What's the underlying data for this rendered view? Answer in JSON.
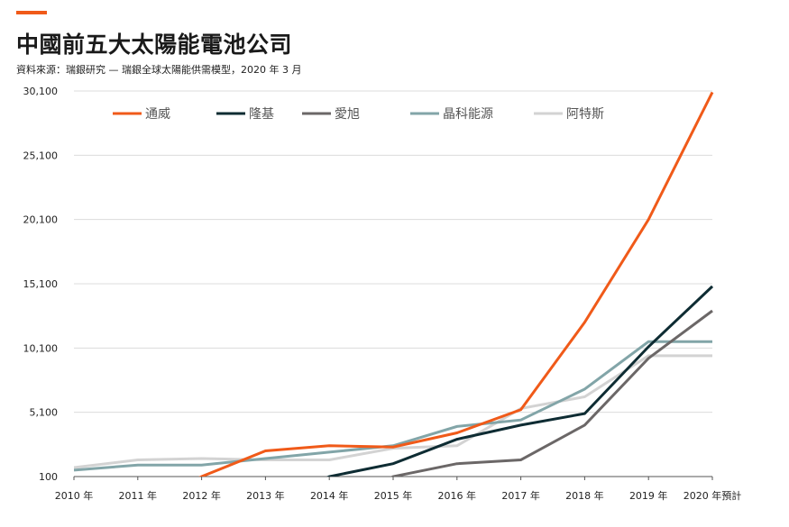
{
  "header": {
    "title": "中國前五大太陽能電池公司",
    "source": "資料來源：瑞銀研究 — 瑞銀全球太陽能供需模型，2020 年 3 月",
    "accent_color": "#f05a19"
  },
  "chart_data": {
    "type": "line",
    "title": "中國前五大太陽能電池公司",
    "xlabel": "",
    "ylabel": "",
    "categories": [
      "2010 年",
      "2011 年",
      "2012 年",
      "2013 年",
      "2014 年",
      "2015 年",
      "2016 年",
      "2017 年",
      "2018 年",
      "2019 年",
      "2020 年預計"
    ],
    "y_ticks": [
      "30,100",
      "25,100",
      "20,100",
      "15,100",
      "10,100",
      "5,100",
      "100"
    ],
    "ylim": [
      100,
      30100
    ],
    "grid": true,
    "legend_position": "top",
    "series": [
      {
        "name": "通威",
        "color": "#f05a19",
        "values": [
          null,
          null,
          100,
          2100,
          2500,
          2400,
          3500,
          5300,
          12100,
          20100,
          30000
        ]
      },
      {
        "name": "隆基",
        "color": "#0e2c33",
        "values": [
          null,
          null,
          null,
          null,
          100,
          1100,
          3000,
          4100,
          5000,
          10200,
          14900
        ]
      },
      {
        "name": "愛旭",
        "color": "#6b6767",
        "values": [
          null,
          null,
          null,
          null,
          null,
          100,
          1100,
          1400,
          4100,
          9300,
          13000
        ]
      },
      {
        "name": "晶科能源",
        "color": "#82a5a8",
        "values": [
          600,
          1000,
          1000,
          1500,
          2000,
          2500,
          4000,
          4500,
          6900,
          10600,
          10600
        ]
      },
      {
        "name": "阿特斯",
        "color": "#d3d3d3",
        "values": [
          800,
          1400,
          1500,
          1400,
          1400,
          2300,
          2500,
          5400,
          6300,
          9500,
          9500
        ]
      }
    ]
  }
}
